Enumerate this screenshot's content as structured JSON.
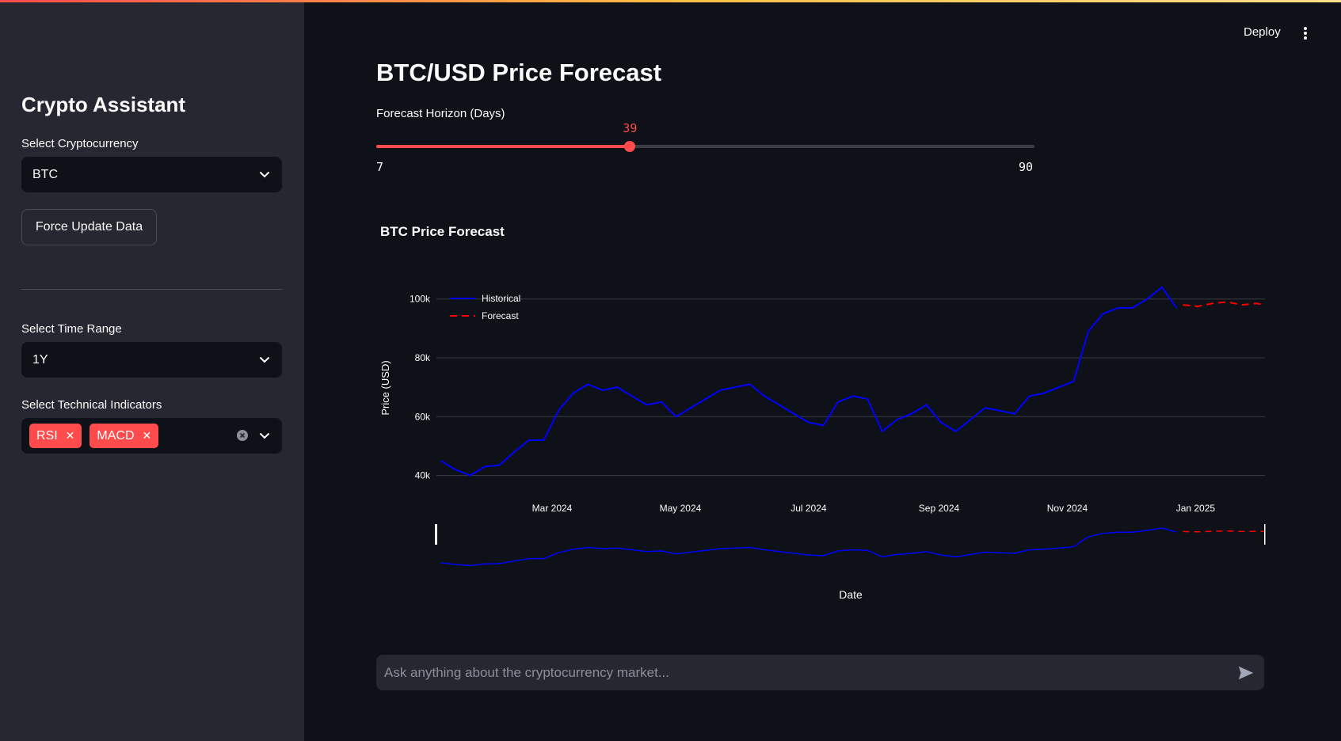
{
  "header": {
    "deploy_label": "Deploy"
  },
  "sidebar": {
    "title": "Crypto Assistant",
    "crypto_label": "Select Cryptocurrency",
    "crypto_value": "BTC",
    "force_update_label": "Force Update Data",
    "time_range_label": "Select Time Range",
    "time_range_value": "1Y",
    "indicators_label": "Select Technical Indicators",
    "indicators": [
      "RSI",
      "MACD"
    ]
  },
  "main": {
    "title": "BTC/USD Price Forecast",
    "slider": {
      "label": "Forecast Horizon (Days)",
      "value": 39,
      "min": 7,
      "max": 90
    },
    "chat_placeholder": "Ask anything about the cryptocurrency market..."
  },
  "colors": {
    "accent": "#ff4b4b",
    "historical": "#0000ff",
    "forecast": "#ff0000"
  },
  "chart_data": {
    "type": "line",
    "title": "BTC Price Forecast",
    "xlabel": "Date",
    "ylabel": "Price (USD)",
    "x_ticks": [
      "Mar 2024",
      "May 2024",
      "Jul 2024",
      "Sep 2024",
      "Nov 2024",
      "Jan 2025"
    ],
    "y_ticks": [
      "40k",
      "60k",
      "80k",
      "100k"
    ],
    "ylim": [
      38000,
      108000
    ],
    "legend": "top-left",
    "series": [
      {
        "name": "Historical",
        "style": "solid",
        "x": [
          "2024-01-08",
          "2024-01-15",
          "2024-01-22",
          "2024-01-29",
          "2024-02-05",
          "2024-02-12",
          "2024-02-19",
          "2024-02-26",
          "2024-03-04",
          "2024-03-11",
          "2024-03-18",
          "2024-03-25",
          "2024-04-01",
          "2024-04-08",
          "2024-04-15",
          "2024-04-22",
          "2024-04-29",
          "2024-05-06",
          "2024-05-13",
          "2024-05-20",
          "2024-05-27",
          "2024-06-03",
          "2024-06-10",
          "2024-06-17",
          "2024-06-24",
          "2024-07-01",
          "2024-07-08",
          "2024-07-15",
          "2024-07-22",
          "2024-07-29",
          "2024-08-05",
          "2024-08-12",
          "2024-08-19",
          "2024-08-26",
          "2024-09-02",
          "2024-09-09",
          "2024-09-16",
          "2024-09-23",
          "2024-09-30",
          "2024-10-07",
          "2024-10-14",
          "2024-10-21",
          "2024-10-28",
          "2024-11-04",
          "2024-11-11",
          "2024-11-18",
          "2024-11-25",
          "2024-12-02",
          "2024-12-09",
          "2024-12-16",
          "2024-12-23"
        ],
        "values": [
          45000,
          42000,
          40000,
          43000,
          43500,
          48000,
          52000,
          52000,
          62000,
          68000,
          71000,
          69000,
          70000,
          67000,
          64000,
          65000,
          60000,
          63000,
          66000,
          69000,
          70000,
          71000,
          67000,
          64000,
          61000,
          58000,
          57000,
          65000,
          67000,
          66000,
          55000,
          59000,
          61000,
          64000,
          58000,
          55000,
          59000,
          63000,
          62000,
          61000,
          67000,
          68000,
          70000,
          72000,
          89000,
          95000,
          97000,
          97000,
          100000,
          104000,
          97000
        ]
      },
      {
        "name": "Forecast",
        "style": "dashed",
        "x": [
          "2024-12-26",
          "2025-01-02",
          "2025-01-09",
          "2025-01-16",
          "2025-01-23",
          "2025-01-30",
          "2025-02-03"
        ],
        "values": [
          98000,
          97500,
          98500,
          99000,
          98000,
          98500,
          98000
        ]
      }
    ]
  }
}
